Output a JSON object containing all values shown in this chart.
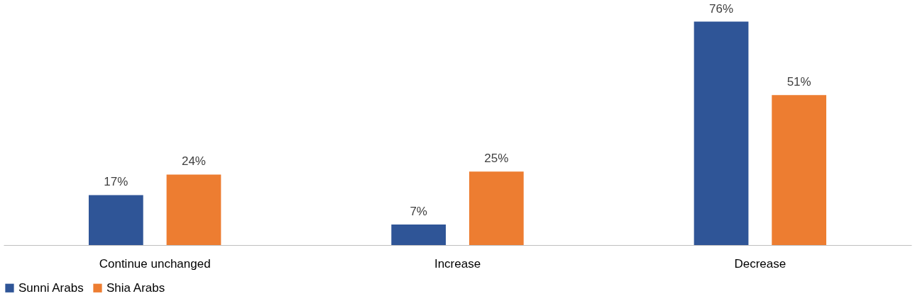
{
  "chart_data": {
    "type": "bar",
    "categories": [
      "Continue unchanged",
      "Increase",
      "Decrease"
    ],
    "series": [
      {
        "name": "Sunni Arabs",
        "color": "#2f5597",
        "values": [
          17,
          7,
          76
        ],
        "value_labels": [
          "17%",
          "7%",
          "76%"
        ]
      },
      {
        "name": "Shia Arabs",
        "color": "#ed7d31",
        "values": [
          24,
          25,
          51
        ],
        "value_labels": [
          "24%",
          "25%",
          "51%"
        ]
      }
    ],
    "legend": "bottom",
    "grid": false
  }
}
